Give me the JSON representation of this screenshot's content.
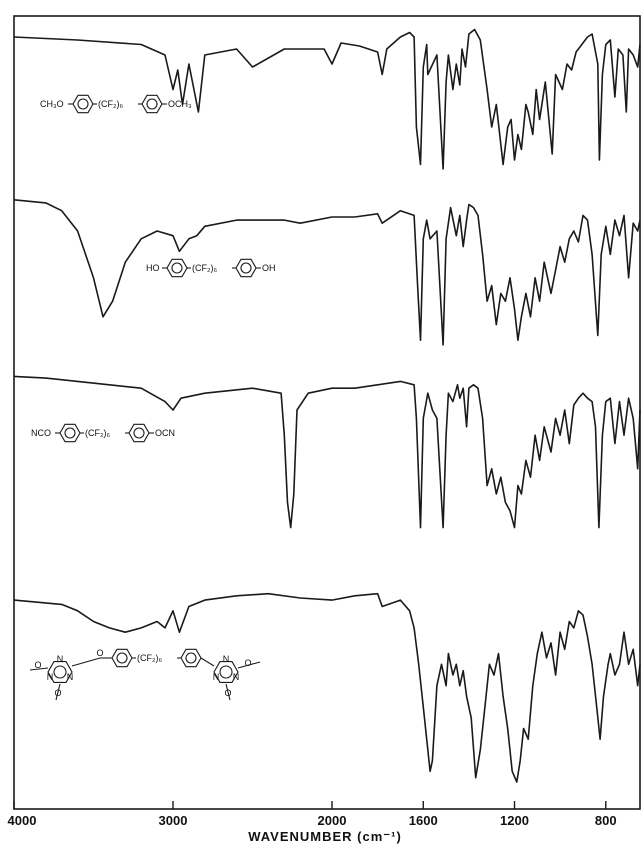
{
  "chart_data": {
    "type": "line",
    "title": "",
    "xlabel": "WAVENUMBER (cm⁻¹)",
    "ylabel": "",
    "xlim": [
      4000,
      650
    ],
    "x_reversed": true,
    "x_ticks": [
      4000,
      3000,
      2000,
      1600,
      1200,
      800
    ],
    "x_tick_labels": [
      "4000",
      "3000",
      "2000",
      "1600",
      "1200",
      "800"
    ],
    "x_scale": "piecewise: 4000-2000 compressed, 2000-650 expanded",
    "grid": false,
    "legend": "none",
    "y_units": "transmittance (stacked spectra, offset, no y-axis)",
    "series": [
      {
        "name": "CH3O-C6H4-(CF2)6-C6H4-OCH3",
        "structure": {
          "left": "CH₃O",
          "link": "(CF₂)₆",
          "right": "OCH₃"
        },
        "points": [
          [
            4000,
            0.9
          ],
          [
            3600,
            0.88
          ],
          [
            3200,
            0.85
          ],
          [
            3050,
            0.78
          ],
          [
            3000,
            0.55
          ],
          [
            2970,
            0.68
          ],
          [
            2940,
            0.45
          ],
          [
            2900,
            0.72
          ],
          [
            2840,
            0.4
          ],
          [
            2800,
            0.78
          ],
          [
            2600,
            0.82
          ],
          [
            2500,
            0.7
          ],
          [
            2300,
            0.82
          ],
          [
            2050,
            0.82
          ],
          [
            2000,
            0.72
          ],
          [
            1960,
            0.86
          ],
          [
            1880,
            0.84
          ],
          [
            1800,
            0.8
          ],
          [
            1780,
            0.65
          ],
          [
            1760,
            0.82
          ],
          [
            1700,
            0.9
          ],
          [
            1660,
            0.93
          ],
          [
            1640,
            0.9
          ],
          [
            1630,
            0.3
          ],
          [
            1612,
            0.05
          ],
          [
            1600,
            0.7
          ],
          [
            1585,
            0.85
          ],
          [
            1580,
            0.65
          ],
          [
            1540,
            0.78
          ],
          [
            1513,
            0.02
          ],
          [
            1500,
            0.6
          ],
          [
            1490,
            0.78
          ],
          [
            1470,
            0.55
          ],
          [
            1455,
            0.72
          ],
          [
            1440,
            0.58
          ],
          [
            1430,
            0.82
          ],
          [
            1415,
            0.7
          ],
          [
            1400,
            0.92
          ],
          [
            1375,
            0.95
          ],
          [
            1350,
            0.88
          ],
          [
            1320,
            0.55
          ],
          [
            1300,
            0.3
          ],
          [
            1280,
            0.45
          ],
          [
            1250,
            0.05
          ],
          [
            1230,
            0.3
          ],
          [
            1215,
            0.35
          ],
          [
            1200,
            0.08
          ],
          [
            1185,
            0.25
          ],
          [
            1170,
            0.15
          ],
          [
            1150,
            0.45
          ],
          [
            1140,
            0.4
          ],
          [
            1120,
            0.25
          ],
          [
            1105,
            0.55
          ],
          [
            1090,
            0.35
          ],
          [
            1065,
            0.6
          ],
          [
            1035,
            0.12
          ],
          [
            1020,
            0.65
          ],
          [
            990,
            0.55
          ],
          [
            970,
            0.72
          ],
          [
            950,
            0.68
          ],
          [
            930,
            0.8
          ],
          [
            910,
            0.84
          ],
          [
            880,
            0.9
          ],
          [
            860,
            0.92
          ],
          [
            835,
            0.72
          ],
          [
            828,
            0.08
          ],
          [
            815,
            0.65
          ],
          [
            800,
            0.85
          ],
          [
            780,
            0.88
          ],
          [
            760,
            0.5
          ],
          [
            745,
            0.82
          ],
          [
            725,
            0.78
          ],
          [
            710,
            0.4
          ],
          [
            700,
            0.82
          ],
          [
            680,
            0.78
          ],
          [
            660,
            0.7
          ],
          [
            650,
            0.85
          ]
        ]
      },
      {
        "name": "HO-C6H4-(CF2)6-C6H4-OH",
        "structure": {
          "left": "HO",
          "link": "(CF₂)₆",
          "right": "OH"
        },
        "points": [
          [
            4000,
            0.95
          ],
          [
            3800,
            0.93
          ],
          [
            3700,
            0.88
          ],
          [
            3600,
            0.75
          ],
          [
            3500,
            0.45
          ],
          [
            3440,
            0.2
          ],
          [
            3380,
            0.3
          ],
          [
            3300,
            0.55
          ],
          [
            3200,
            0.7
          ],
          [
            3100,
            0.75
          ],
          [
            3000,
            0.72
          ],
          [
            2960,
            0.62
          ],
          [
            2900,
            0.7
          ],
          [
            2850,
            0.72
          ],
          [
            2800,
            0.78
          ],
          [
            2600,
            0.82
          ],
          [
            2300,
            0.82
          ],
          [
            2200,
            0.8
          ],
          [
            2000,
            0.84
          ],
          [
            1900,
            0.84
          ],
          [
            1800,
            0.86
          ],
          [
            1780,
            0.8
          ],
          [
            1700,
            0.88
          ],
          [
            1640,
            0.85
          ],
          [
            1625,
            0.4
          ],
          [
            1612,
            0.05
          ],
          [
            1600,
            0.7
          ],
          [
            1585,
            0.82
          ],
          [
            1570,
            0.7
          ],
          [
            1540,
            0.75
          ],
          [
            1513,
            0.02
          ],
          [
            1500,
            0.7
          ],
          [
            1480,
            0.9
          ],
          [
            1455,
            0.72
          ],
          [
            1440,
            0.85
          ],
          [
            1425,
            0.65
          ],
          [
            1410,
            0.82
          ],
          [
            1400,
            0.92
          ],
          [
            1380,
            0.9
          ],
          [
            1360,
            0.85
          ],
          [
            1340,
            0.6
          ],
          [
            1320,
            0.3
          ],
          [
            1300,
            0.4
          ],
          [
            1280,
            0.15
          ],
          [
            1260,
            0.35
          ],
          [
            1240,
            0.3
          ],
          [
            1220,
            0.45
          ],
          [
            1200,
            0.25
          ],
          [
            1185,
            0.05
          ],
          [
            1170,
            0.2
          ],
          [
            1150,
            0.35
          ],
          [
            1130,
            0.2
          ],
          [
            1110,
            0.45
          ],
          [
            1090,
            0.3
          ],
          [
            1070,
            0.55
          ],
          [
            1040,
            0.35
          ],
          [
            1020,
            0.5
          ],
          [
            1000,
            0.65
          ],
          [
            980,
            0.55
          ],
          [
            960,
            0.7
          ],
          [
            940,
            0.75
          ],
          [
            920,
            0.68
          ],
          [
            900,
            0.85
          ],
          [
            880,
            0.82
          ],
          [
            860,
            0.6
          ],
          [
            835,
            0.08
          ],
          [
            820,
            0.6
          ],
          [
            800,
            0.78
          ],
          [
            780,
            0.6
          ],
          [
            760,
            0.82
          ],
          [
            740,
            0.72
          ],
          [
            720,
            0.85
          ],
          [
            700,
            0.45
          ],
          [
            680,
            0.8
          ],
          [
            660,
            0.75
          ],
          [
            650,
            0.82
          ]
        ]
      },
      {
        "name": "NCO-C6H4-(CF2)6-C6H4-OCN",
        "structure": {
          "left": "NCO",
          "link": "(CF₂)₆",
          "right": "OCN"
        },
        "points": [
          [
            4000,
            0.95
          ],
          [
            3800,
            0.94
          ],
          [
            3600,
            0.92
          ],
          [
            3400,
            0.9
          ],
          [
            3200,
            0.88
          ],
          [
            3050,
            0.8
          ],
          [
            3000,
            0.75
          ],
          [
            2950,
            0.82
          ],
          [
            2800,
            0.85
          ],
          [
            2500,
            0.88
          ],
          [
            2320,
            0.85
          ],
          [
            2300,
            0.6
          ],
          [
            2280,
            0.2
          ],
          [
            2260,
            0.05
          ],
          [
            2240,
            0.25
          ],
          [
            2220,
            0.75
          ],
          [
            2150,
            0.85
          ],
          [
            2000,
            0.88
          ],
          [
            1900,
            0.88
          ],
          [
            1800,
            0.9
          ],
          [
            1700,
            0.92
          ],
          [
            1640,
            0.9
          ],
          [
            1630,
            0.7
          ],
          [
            1612,
            0.05
          ],
          [
            1600,
            0.7
          ],
          [
            1580,
            0.85
          ],
          [
            1560,
            0.75
          ],
          [
            1540,
            0.7
          ],
          [
            1513,
            0.05
          ],
          [
            1500,
            0.6
          ],
          [
            1490,
            0.85
          ],
          [
            1470,
            0.8
          ],
          [
            1450,
            0.9
          ],
          [
            1440,
            0.82
          ],
          [
            1425,
            0.88
          ],
          [
            1410,
            0.65
          ],
          [
            1400,
            0.88
          ],
          [
            1380,
            0.9
          ],
          [
            1360,
            0.88
          ],
          [
            1340,
            0.7
          ],
          [
            1320,
            0.3
          ],
          [
            1300,
            0.4
          ],
          [
            1280,
            0.25
          ],
          [
            1260,
            0.35
          ],
          [
            1240,
            0.2
          ],
          [
            1220,
            0.15
          ],
          [
            1200,
            0.05
          ],
          [
            1185,
            0.3
          ],
          [
            1170,
            0.25
          ],
          [
            1150,
            0.45
          ],
          [
            1130,
            0.35
          ],
          [
            1110,
            0.6
          ],
          [
            1090,
            0.45
          ],
          [
            1070,
            0.65
          ],
          [
            1040,
            0.5
          ],
          [
            1020,
            0.7
          ],
          [
            1000,
            0.6
          ],
          [
            980,
            0.75
          ],
          [
            960,
            0.55
          ],
          [
            940,
            0.78
          ],
          [
            920,
            0.82
          ],
          [
            900,
            0.85
          ],
          [
            880,
            0.82
          ],
          [
            860,
            0.8
          ],
          [
            845,
            0.65
          ],
          [
            830,
            0.05
          ],
          [
            815,
            0.6
          ],
          [
            800,
            0.8
          ],
          [
            780,
            0.82
          ],
          [
            760,
            0.55
          ],
          [
            740,
            0.8
          ],
          [
            720,
            0.6
          ],
          [
            700,
            0.82
          ],
          [
            680,
            0.7
          ],
          [
            660,
            0.4
          ],
          [
            650,
            0.75
          ]
        ]
      },
      {
        "name": "triazine polymer (cyanurate network) of -C6H4-(CF2)6-C6H4-",
        "structure": {
          "left": "",
          "link": "(CF₂)₆",
          "right": "",
          "atoms": [
            "N",
            "N",
            "N",
            "N",
            "N",
            "N",
            "O",
            "O",
            "O",
            "O",
            "O"
          ]
        },
        "points": [
          [
            4000,
            0.85
          ],
          [
            3700,
            0.83
          ],
          [
            3600,
            0.8
          ],
          [
            3500,
            0.75
          ],
          [
            3400,
            0.72
          ],
          [
            3300,
            0.7
          ],
          [
            3200,
            0.72
          ],
          [
            3100,
            0.75
          ],
          [
            3050,
            0.72
          ],
          [
            3000,
            0.8
          ],
          [
            2960,
            0.7
          ],
          [
            2900,
            0.82
          ],
          [
            2800,
            0.85
          ],
          [
            2600,
            0.87
          ],
          [
            2400,
            0.88
          ],
          [
            2200,
            0.86
          ],
          [
            2000,
            0.85
          ],
          [
            1900,
            0.87
          ],
          [
            1800,
            0.88
          ],
          [
            1780,
            0.82
          ],
          [
            1700,
            0.85
          ],
          [
            1660,
            0.8
          ],
          [
            1640,
            0.72
          ],
          [
            1620,
            0.55
          ],
          [
            1600,
            0.35
          ],
          [
            1585,
            0.2
          ],
          [
            1570,
            0.05
          ],
          [
            1560,
            0.1
          ],
          [
            1540,
            0.45
          ],
          [
            1520,
            0.55
          ],
          [
            1500,
            0.45
          ],
          [
            1490,
            0.6
          ],
          [
            1470,
            0.5
          ],
          [
            1455,
            0.55
          ],
          [
            1440,
            0.45
          ],
          [
            1425,
            0.52
          ],
          [
            1410,
            0.4
          ],
          [
            1390,
            0.3
          ],
          [
            1370,
            0.02
          ],
          [
            1350,
            0.15
          ],
          [
            1330,
            0.35
          ],
          [
            1310,
            0.55
          ],
          [
            1290,
            0.5
          ],
          [
            1270,
            0.6
          ],
          [
            1250,
            0.4
          ],
          [
            1230,
            0.25
          ],
          [
            1210,
            0.05
          ],
          [
            1190,
            0.0
          ],
          [
            1175,
            0.1
          ],
          [
            1160,
            0.25
          ],
          [
            1140,
            0.2
          ],
          [
            1120,
            0.45
          ],
          [
            1100,
            0.6
          ],
          [
            1080,
            0.7
          ],
          [
            1060,
            0.58
          ],
          [
            1040,
            0.65
          ],
          [
            1020,
            0.5
          ],
          [
            1000,
            0.7
          ],
          [
            980,
            0.62
          ],
          [
            960,
            0.75
          ],
          [
            940,
            0.72
          ],
          [
            920,
            0.8
          ],
          [
            900,
            0.78
          ],
          [
            880,
            0.68
          ],
          [
            860,
            0.55
          ],
          [
            840,
            0.35
          ],
          [
            825,
            0.2
          ],
          [
            810,
            0.4
          ],
          [
            790,
            0.55
          ],
          [
            780,
            0.6
          ],
          [
            760,
            0.5
          ],
          [
            740,
            0.55
          ],
          [
            720,
            0.7
          ],
          [
            700,
            0.55
          ],
          [
            680,
            0.62
          ],
          [
            660,
            0.45
          ],
          [
            650,
            0.55
          ]
        ]
      }
    ]
  }
}
